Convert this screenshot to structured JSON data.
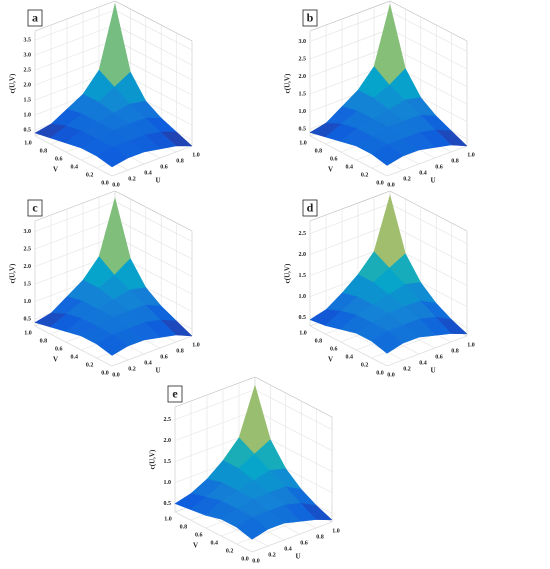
{
  "chart_data": [
    {
      "type": "surface",
      "panel": "a",
      "xlabel": "U",
      "ylabel": "V",
      "zlabel": "c(U,V)",
      "x": [
        0,
        0.2,
        0.4,
        0.6,
        0.8,
        1
      ],
      "y": [
        0,
        0.2,
        0.4,
        0.6,
        0.8,
        1
      ],
      "z": [
        [
          0.6,
          0.7,
          0.7,
          0.6,
          0.5,
          0.3
        ],
        [
          0.7,
          0.8,
          0.8,
          0.8,
          0.7,
          0.5
        ],
        [
          0.7,
          0.8,
          0.9,
          0.9,
          0.9,
          0.7
        ],
        [
          0.6,
          0.8,
          0.9,
          1.0,
          1.1,
          1.0
        ],
        [
          0.5,
          0.7,
          0.9,
          1.1,
          1.4,
          1.7
        ],
        [
          0.4,
          0.5,
          0.8,
          1.1,
          1.7,
          3.7
        ]
      ],
      "xlim": [
        0,
        1
      ],
      "ylim": [
        0,
        1
      ],
      "zlim": [
        0.3,
        3.8
      ],
      "xticks": [
        {
          "value": 0,
          "label": "0.0"
        },
        0.2,
        0.4,
        0.6,
        0.8,
        {
          "value": 1,
          "label": "1.0"
        }
      ],
      "yticks": [
        {
          "value": 0,
          "label": "0.0"
        },
        0.2,
        0.4,
        0.6,
        0.8,
        {
          "value": 1,
          "label": "1.0"
        }
      ],
      "zticks": [
        0.5,
        {
          "value": 1,
          "label": "1.0"
        },
        1.5,
        {
          "value": 2,
          "label": "2.0"
        },
        2.5,
        {
          "value": 3,
          "label": "3.0"
        },
        3.5
      ],
      "colormap": [
        "#352a87",
        "#0f5cdd",
        "#1481d6",
        "#06a4ca",
        "#2eb7a4",
        "#87bf77",
        "#d1bb59",
        "#fec832",
        "#f9fb0e"
      ],
      "grid": true
    },
    {
      "type": "surface",
      "panel": "b",
      "xlabel": "U",
      "ylabel": "V",
      "zlabel": "c(U,V)",
      "x": [
        0,
        0.2,
        0.4,
        0.6,
        0.8,
        1
      ],
      "y": [
        0,
        0.2,
        0.4,
        0.6,
        0.8,
        1
      ],
      "z": [
        [
          0.6,
          0.7,
          0.7,
          0.6,
          0.5,
          0.3
        ],
        [
          0.7,
          0.8,
          0.8,
          0.8,
          0.7,
          0.5
        ],
        [
          0.7,
          0.8,
          0.9,
          0.9,
          0.9,
          0.7
        ],
        [
          0.6,
          0.8,
          0.9,
          1.0,
          1.1,
          1.0
        ],
        [
          0.5,
          0.7,
          0.9,
          1.1,
          1.3,
          1.6
        ],
        [
          0.4,
          0.5,
          0.8,
          1.1,
          1.6,
          3.2
        ]
      ],
      "xlim": [
        0,
        1
      ],
      "ylim": [
        0,
        1
      ],
      "zlim": [
        0.3,
        3.3
      ],
      "xticks": [
        {
          "value": 0,
          "label": "0.0"
        },
        0.2,
        0.4,
        0.6,
        0.8,
        {
          "value": 1,
          "label": "1.0"
        }
      ],
      "yticks": [
        {
          "value": 0,
          "label": "0.0"
        },
        0.2,
        0.4,
        0.6,
        0.8,
        {
          "value": 1,
          "label": "1.0"
        }
      ],
      "zticks": [
        0.5,
        {
          "value": 1,
          "label": "1.0"
        },
        1.5,
        {
          "value": 2,
          "label": "2.0"
        },
        2.5,
        {
          "value": 3,
          "label": "3.0"
        }
      ],
      "colormap": [
        "#352a87",
        "#0f5cdd",
        "#1481d6",
        "#06a4ca",
        "#2eb7a4",
        "#87bf77",
        "#d1bb59",
        "#fec832",
        "#f9fb0e"
      ],
      "grid": true
    },
    {
      "type": "surface",
      "panel": "c",
      "xlabel": "U",
      "ylabel": "V",
      "zlabel": "c(U,V)",
      "x": [
        0,
        0.2,
        0.4,
        0.6,
        0.8,
        1
      ],
      "y": [
        0,
        0.2,
        0.4,
        0.6,
        0.8,
        1
      ],
      "z": [
        [
          0.6,
          0.7,
          0.7,
          0.6,
          0.5,
          0.3
        ],
        [
          0.7,
          0.8,
          0.8,
          0.8,
          0.7,
          0.5
        ],
        [
          0.7,
          0.8,
          0.9,
          0.9,
          0.9,
          0.7
        ],
        [
          0.6,
          0.8,
          0.9,
          1.0,
          1.1,
          1.0
        ],
        [
          0.5,
          0.7,
          0.9,
          1.1,
          1.3,
          1.6
        ],
        [
          0.4,
          0.5,
          0.8,
          1.1,
          1.6,
          3.1
        ]
      ],
      "xlim": [
        0,
        1
      ],
      "ylim": [
        0,
        1
      ],
      "zlim": [
        0.3,
        3.3
      ],
      "xticks": [
        {
          "value": 0,
          "label": "0.0"
        },
        0.2,
        0.4,
        0.6,
        0.8,
        {
          "value": 1,
          "label": "1.0"
        }
      ],
      "yticks": [
        {
          "value": 0,
          "label": "0.0"
        },
        0.2,
        0.4,
        0.6,
        0.8,
        {
          "value": 1,
          "label": "1.0"
        }
      ],
      "zticks": [
        0.5,
        {
          "value": 1,
          "label": "1.0"
        },
        1.5,
        {
          "value": 2,
          "label": "2.0"
        },
        2.5,
        {
          "value": 3,
          "label": "3.0"
        }
      ],
      "colormap": [
        "#352a87",
        "#0f5cdd",
        "#1481d6",
        "#06a4ca",
        "#2eb7a4",
        "#87bf77",
        "#d1bb59",
        "#fec832",
        "#f9fb0e"
      ],
      "grid": true
    },
    {
      "type": "surface",
      "panel": "d",
      "xlabel": "U",
      "ylabel": "V",
      "zlabel": "c(U,V)",
      "x": [
        0,
        0.2,
        0.4,
        0.6,
        0.8,
        1
      ],
      "y": [
        0,
        0.2,
        0.4,
        0.6,
        0.8,
        1
      ],
      "z": [
        [
          0.6,
          0.7,
          0.7,
          0.6,
          0.5,
          0.35
        ],
        [
          0.7,
          0.8,
          0.8,
          0.8,
          0.7,
          0.5
        ],
        [
          0.7,
          0.8,
          0.9,
          0.9,
          0.9,
          0.7
        ],
        [
          0.6,
          0.8,
          0.9,
          1.0,
          1.1,
          1.0
        ],
        [
          0.5,
          0.7,
          0.9,
          1.1,
          1.3,
          1.5
        ],
        [
          0.45,
          0.55,
          0.8,
          1.1,
          1.5,
          2.7
        ]
      ],
      "xlim": [
        0,
        1
      ],
      "ylim": [
        0,
        1
      ],
      "zlim": [
        0.3,
        2.8
      ],
      "xticks": [
        {
          "value": 0,
          "label": "0.0"
        },
        0.2,
        0.4,
        0.6,
        0.8,
        {
          "value": 1,
          "label": "1.0"
        }
      ],
      "yticks": [
        {
          "value": 0,
          "label": "0.0"
        },
        0.2,
        0.4,
        0.6,
        0.8,
        {
          "value": 1,
          "label": "1.0"
        }
      ],
      "zticks": [
        0.5,
        {
          "value": 1,
          "label": "1.0"
        },
        1.5,
        {
          "value": 2,
          "label": "2.0"
        },
        2.5
      ],
      "colormap": [
        "#352a87",
        "#0f5cdd",
        "#1481d6",
        "#06a4ca",
        "#2eb7a4",
        "#87bf77",
        "#d1bb59",
        "#fec832",
        "#f9fb0e"
      ],
      "grid": true
    },
    {
      "type": "surface",
      "panel": "e",
      "xlabel": "U",
      "ylabel": "V",
      "zlabel": "c(U,V)",
      "x": [
        0,
        0.2,
        0.4,
        0.6,
        0.8,
        1
      ],
      "y": [
        0,
        0.2,
        0.4,
        0.6,
        0.8,
        1
      ],
      "z": [
        [
          0.6,
          0.7,
          0.7,
          0.6,
          0.5,
          0.35
        ],
        [
          0.7,
          0.8,
          0.8,
          0.8,
          0.7,
          0.5
        ],
        [
          0.7,
          0.8,
          0.9,
          0.9,
          0.9,
          0.7
        ],
        [
          0.6,
          0.8,
          0.9,
          1.0,
          1.1,
          1.0
        ],
        [
          0.55,
          0.7,
          0.9,
          1.1,
          1.3,
          1.5
        ],
        [
          0.5,
          0.6,
          0.8,
          1.1,
          1.5,
          2.6
        ]
      ],
      "xlim": [
        0,
        1
      ],
      "ylim": [
        0,
        1
      ],
      "zlim": [
        0.3,
        2.8
      ],
      "xticks": [
        {
          "value": 0,
          "label": "0.0"
        },
        0.2,
        0.4,
        0.6,
        0.8,
        {
          "value": 1,
          "label": "1.0"
        }
      ],
      "yticks": [
        {
          "value": 0,
          "label": "0.0"
        },
        0.2,
        0.4,
        0.6,
        0.8,
        {
          "value": 1,
          "label": "1.0"
        }
      ],
      "zticks": [
        0.5,
        {
          "value": 1,
          "label": "1.0"
        },
        1.5,
        {
          "value": 2,
          "label": "2.0"
        },
        2.5
      ],
      "colormap": [
        "#352a87",
        "#0f5cdd",
        "#1481d6",
        "#06a4ca",
        "#2eb7a4",
        "#87bf77",
        "#d1bb59",
        "#fec832",
        "#f9fb0e"
      ],
      "grid": true
    }
  ]
}
